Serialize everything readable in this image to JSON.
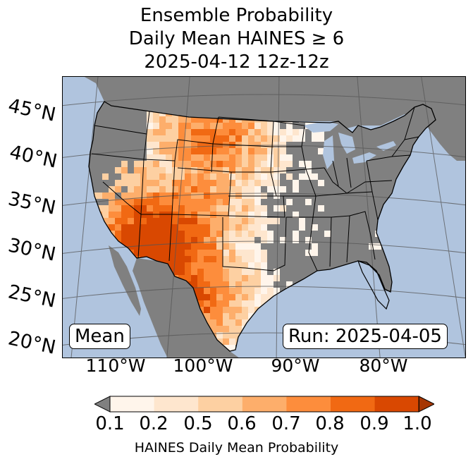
{
  "title": {
    "line1": "Ensemble Probability",
    "line2": "Daily Mean HAINES ≥ 6",
    "line3": "2025-04-12 12z-12z"
  },
  "map": {
    "lat_labels": [
      "45°N",
      "40°N",
      "35°N",
      "30°N",
      "25°N",
      "20°N"
    ],
    "lon_labels": [
      "110°W",
      "100°W",
      "90°W",
      "80°W"
    ],
    "ocean_color": "#b0c4de",
    "land_color": "#808080",
    "mode_label": "Mean",
    "run_label": "Run: 2025-04-05"
  },
  "colorbar": {
    "ticks": [
      "0.1",
      "0.2",
      "0.5",
      "0.6",
      "0.7",
      "0.8",
      "0.9",
      "1.0"
    ],
    "colors": [
      "#fff5eb",
      "#fee6ce",
      "#fdd0a2",
      "#fdae6b",
      "#fd8d3c",
      "#f16913",
      "#d94801"
    ],
    "under_color": "#808080",
    "over_color": "#a63603",
    "label": "HAINES Daily Mean Probability"
  }
}
